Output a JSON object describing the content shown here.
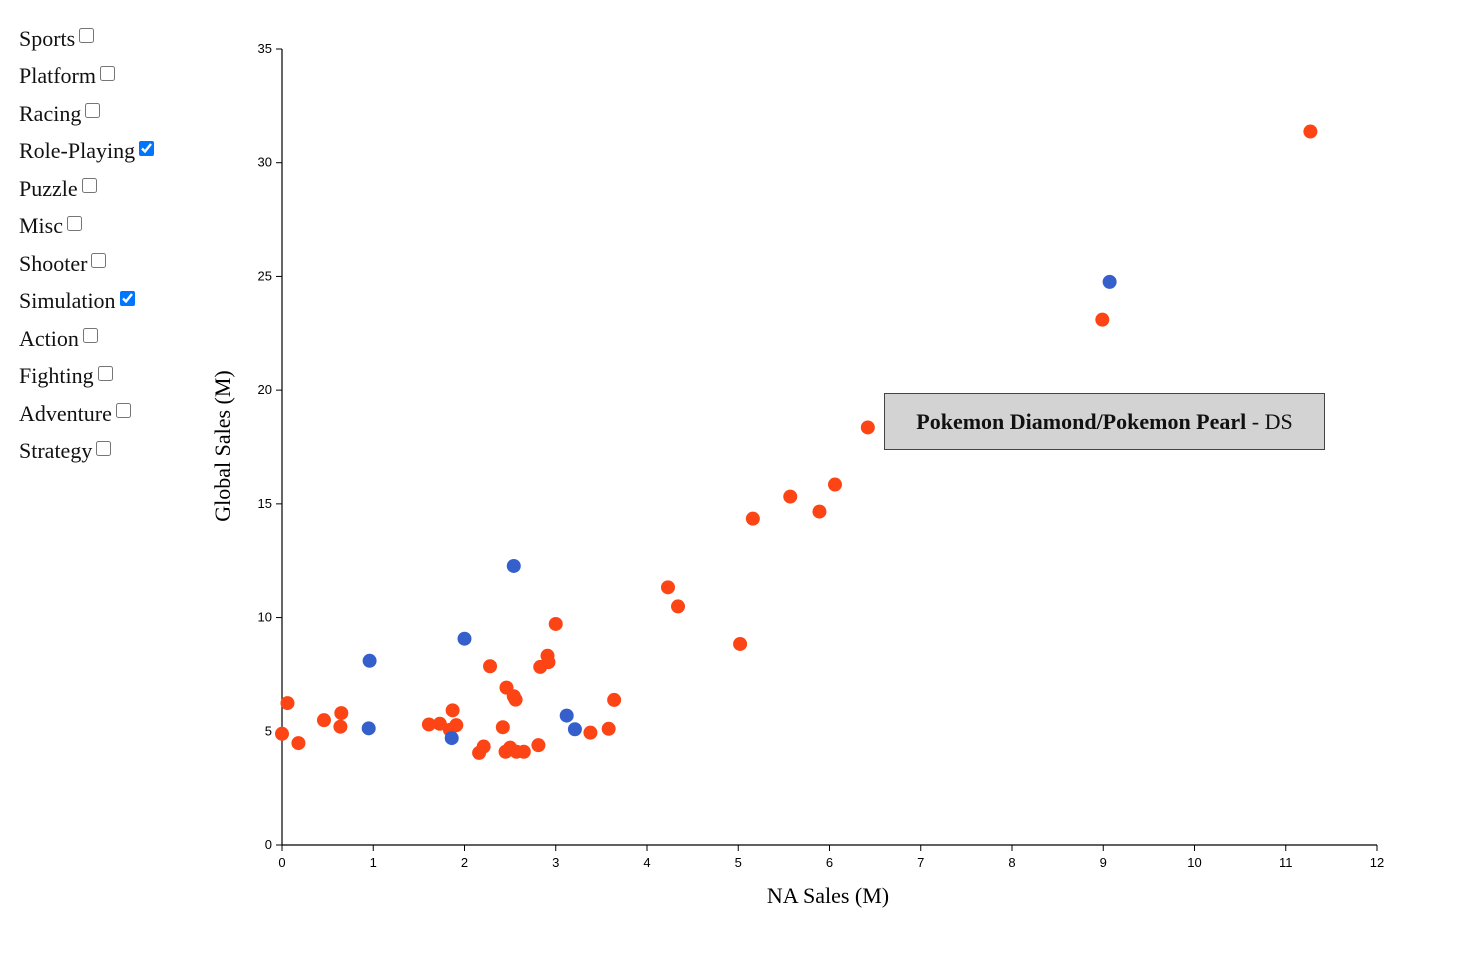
{
  "filters": [
    {
      "label": "Sports",
      "checked": false
    },
    {
      "label": "Platform",
      "checked": false
    },
    {
      "label": "Racing",
      "checked": false
    },
    {
      "label": "Role-Playing",
      "checked": true
    },
    {
      "label": "Puzzle",
      "checked": false
    },
    {
      "label": "Misc",
      "checked": false
    },
    {
      "label": "Shooter",
      "checked": false
    },
    {
      "label": "Simulation",
      "checked": true
    },
    {
      "label": "Action",
      "checked": false
    },
    {
      "label": "Fighting",
      "checked": false
    },
    {
      "label": "Adventure",
      "checked": false
    },
    {
      "label": "Strategy",
      "checked": false
    }
  ],
  "tooltip": {
    "title": "Pokemon Diamond/Pokemon Pearl",
    "separator": " - ",
    "platform": "DS"
  },
  "colors": {
    "role_playing": "#fc4415",
    "simulation": "#3560cc",
    "axis": "#000000"
  },
  "chart_data": {
    "type": "scatter",
    "title": "",
    "xlabel": "NA Sales (M)",
    "ylabel": "Global Sales (M)",
    "xlim": [
      0,
      12
    ],
    "ylim": [
      0,
      35
    ],
    "xticks": [
      0,
      1,
      2,
      3,
      4,
      5,
      6,
      7,
      8,
      9,
      10,
      11,
      12
    ],
    "yticks": [
      0,
      5,
      10,
      15,
      20,
      25,
      30,
      35
    ],
    "grid": false,
    "series": [
      {
        "color_key": "role_playing",
        "points": [
          [
            11.27,
            31.37
          ],
          [
            8.99,
            23.1
          ],
          [
            6.42,
            18.36
          ],
          [
            6.06,
            15.85
          ],
          [
            5.57,
            15.32
          ],
          [
            5.89,
            14.66
          ],
          [
            5.16,
            14.35
          ],
          [
            4.23,
            11.33
          ],
          [
            4.34,
            10.49
          ],
          [
            3.0,
            9.72
          ],
          [
            5.02,
            8.84
          ],
          [
            2.91,
            8.32
          ],
          [
            2.28,
            7.86
          ],
          [
            2.83,
            7.83
          ],
          [
            2.92,
            8.04
          ],
          [
            2.46,
            6.92
          ],
          [
            2.54,
            6.54
          ],
          [
            3.64,
            6.38
          ],
          [
            2.56,
            6.39
          ],
          [
            0.06,
            6.24
          ],
          [
            0.65,
            5.8
          ],
          [
            1.87,
            5.92
          ],
          [
            0.46,
            5.49
          ],
          [
            1.61,
            5.3
          ],
          [
            1.73,
            5.33
          ],
          [
            1.91,
            5.27
          ],
          [
            0.64,
            5.2
          ],
          [
            2.42,
            5.18
          ],
          [
            3.58,
            5.11
          ],
          [
            1.84,
            5.06
          ],
          [
            3.38,
            4.94
          ],
          [
            0.0,
            4.89
          ],
          [
            0.18,
            4.48
          ],
          [
            2.81,
            4.39
          ],
          [
            2.21,
            4.33
          ],
          [
            2.5,
            4.28
          ],
          [
            2.16,
            4.05
          ],
          [
            2.45,
            4.1
          ],
          [
            2.57,
            4.1
          ],
          [
            2.65,
            4.1
          ]
        ]
      },
      {
        "color_key": "simulation",
        "points": [
          [
            9.07,
            24.76
          ],
          [
            2.54,
            12.27
          ],
          [
            2.0,
            9.07
          ],
          [
            0.96,
            8.1
          ],
          [
            3.12,
            5.69
          ],
          [
            0.95,
            5.13
          ],
          [
            3.21,
            5.09
          ],
          [
            1.86,
            4.7
          ]
        ]
      }
    ]
  }
}
